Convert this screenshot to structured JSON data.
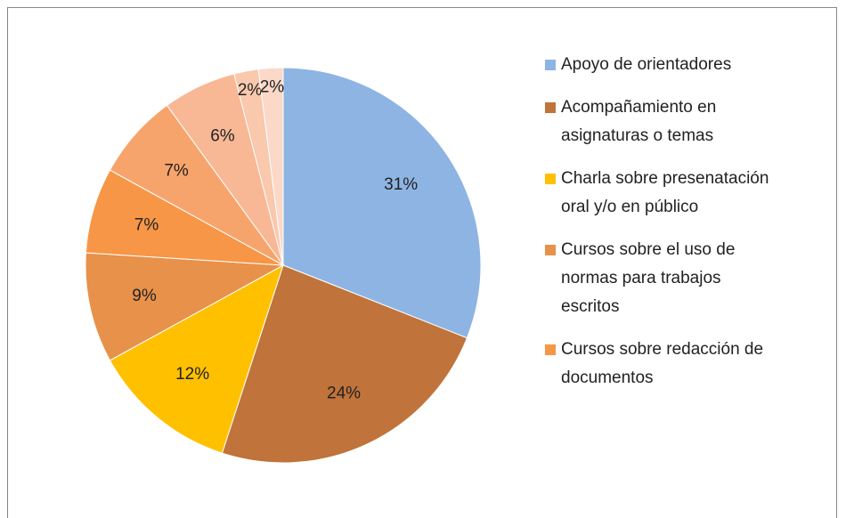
{
  "chart_data": {
    "type": "pie",
    "categories": [
      "Apoyo de orientadores",
      "Acompañamiento en asignaturas o temas",
      "Charla sobre presenatación oral y/o en público",
      "Cursos sobre el uso de normas para trabajos escritos",
      "Cursos sobre redacción de documentos",
      null,
      null,
      null,
      null
    ],
    "values": [
      31,
      24,
      12,
      9,
      7,
      7,
      6,
      2,
      2
    ],
    "value_labels": [
      "31%",
      "24%",
      "12%",
      "9%",
      "7%",
      "7%",
      "6%",
      "2%",
      "2%"
    ],
    "colors": [
      "#8eb4e3",
      "#c0733a",
      "#ffc000",
      "#e8914a",
      "#f79646",
      "#f7a46c",
      "#f8b895",
      "#f9c8ad",
      "#fbd8c7"
    ],
    "legend": "right"
  }
}
